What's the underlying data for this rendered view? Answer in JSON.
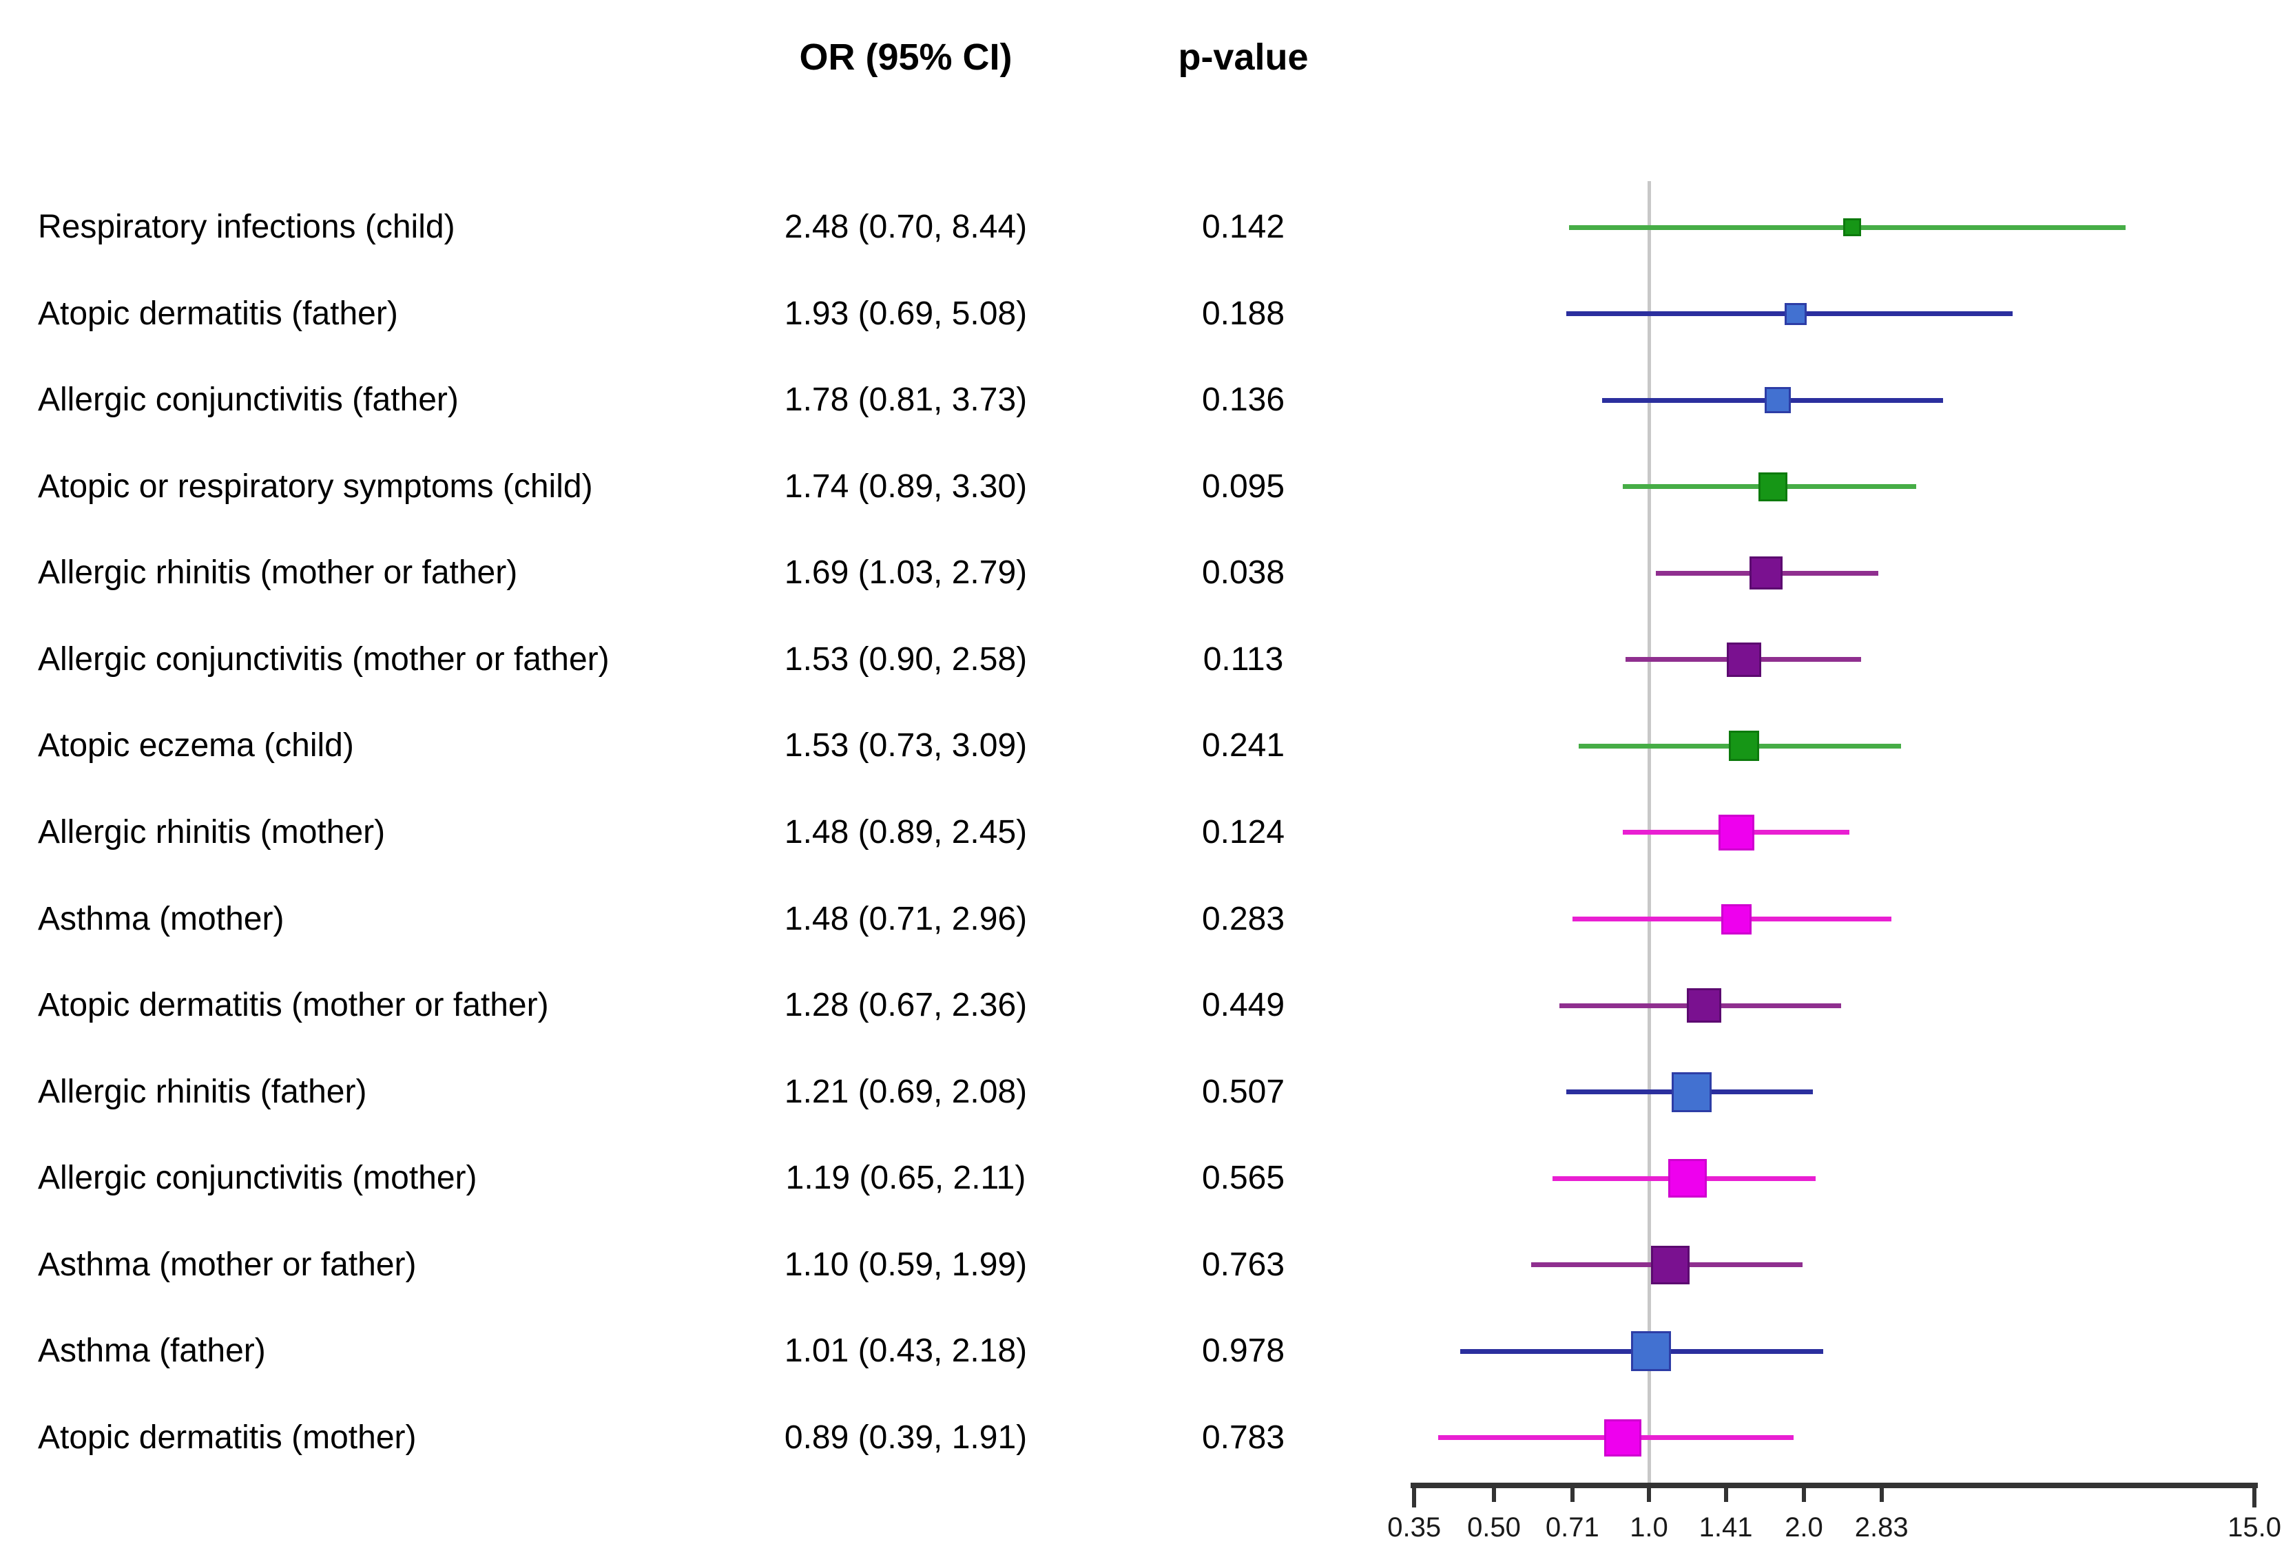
{
  "header": {
    "or_label": "OR (95% CI)",
    "p_label": "p-value"
  },
  "chart_data": {
    "type": "forest",
    "x_scale": "log2",
    "x_domain": [
      0.35,
      15.0
    ],
    "reference_value": 1.0,
    "grid": "off",
    "x_ticks": [
      {
        "v": 0.35,
        "label": "0.35"
      },
      {
        "v": 0.5,
        "label": "0.50"
      },
      {
        "v": 0.71,
        "label": "0.71"
      },
      {
        "v": 1.0,
        "label": "1.0"
      },
      {
        "v": 1.41,
        "label": "1.41"
      },
      {
        "v": 2.0,
        "label": "2.0"
      },
      {
        "v": 2.83,
        "label": "2.83"
      },
      {
        "v": 15.0,
        "label": "15.0"
      }
    ],
    "groups": {
      "child": {
        "square": "#169616",
        "line": "#46ad46",
        "edge": "#0d7a0d"
      },
      "father": {
        "square": "#4271d1",
        "line": "#2b2f9e",
        "edge": "#2d3da6"
      },
      "mother_or_father": {
        "square": "#7a1190",
        "line": "#8f2f8f",
        "edge": "#5c0a70"
      },
      "mother": {
        "square": "#ee00ee",
        "line": "#e91fd2",
        "edge": "#cf00cf"
      }
    },
    "rows": [
      {
        "label": "Respiratory infections (child)",
        "or_ci": "2.48 (0.70, 8.44)",
        "p": "0.142",
        "or": 2.48,
        "lo": 0.7,
        "hi": 8.44,
        "group": "child",
        "size": 26
      },
      {
        "label": "Atopic dermatitis (father)",
        "or_ci": "1.93 (0.69, 5.08)",
        "p": "0.188",
        "or": 1.93,
        "lo": 0.69,
        "hi": 5.08,
        "group": "father",
        "size": 32
      },
      {
        "label": "Allergic conjunctivitis (father)",
        "or_ci": "1.78 (0.81, 3.73)",
        "p": "0.136",
        "or": 1.78,
        "lo": 0.81,
        "hi": 3.73,
        "group": "father",
        "size": 38
      },
      {
        "label": "Atopic or respiratory symptoms (child)",
        "or_ci": "1.74 (0.89, 3.30)",
        "p": "0.095",
        "or": 1.74,
        "lo": 0.89,
        "hi": 3.3,
        "group": "child",
        "size": 42
      },
      {
        "label": "Allergic rhinitis (mother or father)",
        "or_ci": "1.69 (1.03, 2.79)",
        "p": "0.038",
        "or": 1.69,
        "lo": 1.03,
        "hi": 2.79,
        "group": "mother_or_father",
        "size": 48
      },
      {
        "label": "Allergic conjunctivitis (mother or father)",
        "or_ci": "1.53 (0.90, 2.58)",
        "p": "0.113",
        "or": 1.53,
        "lo": 0.9,
        "hi": 2.58,
        "group": "mother_or_father",
        "size": 50
      },
      {
        "label": "Atopic eczema (child)",
        "or_ci": "1.53 (0.73, 3.09)",
        "p": "0.241",
        "or": 1.53,
        "lo": 0.73,
        "hi": 3.09,
        "group": "child",
        "size": 44
      },
      {
        "label": "Allergic rhinitis (mother)",
        "or_ci": "1.48 (0.89, 2.45)",
        "p": "0.124",
        "or": 1.48,
        "lo": 0.89,
        "hi": 2.45,
        "group": "mother",
        "size": 52
      },
      {
        "label": "Asthma (mother)",
        "or_ci": "1.48 (0.71, 2.96)",
        "p": "0.283",
        "or": 1.48,
        "lo": 0.71,
        "hi": 2.96,
        "group": "mother",
        "size": 44
      },
      {
        "label": "Atopic dermatitis (mother or father)",
        "or_ci": "1.28 (0.67, 2.36)",
        "p": "0.449",
        "or": 1.28,
        "lo": 0.67,
        "hi": 2.36,
        "group": "mother_or_father",
        "size": 50
      },
      {
        "label": "Allergic rhinitis (father)",
        "or_ci": "1.21 (0.69, 2.08)",
        "p": "0.507",
        "or": 1.21,
        "lo": 0.69,
        "hi": 2.08,
        "group": "father",
        "size": 58
      },
      {
        "label": "Allergic conjunctivitis (mother)",
        "or_ci": "1.19 (0.65, 2.11)",
        "p": "0.565",
        "or": 1.19,
        "lo": 0.65,
        "hi": 2.11,
        "group": "mother",
        "size": 56
      },
      {
        "label": "Asthma (mother or father)",
        "or_ci": "1.10 (0.59, 1.99)",
        "p": "0.763",
        "or": 1.1,
        "lo": 0.59,
        "hi": 1.99,
        "group": "mother_or_father",
        "size": 56
      },
      {
        "label": "Asthma (father)",
        "or_ci": "1.01 (0.43, 2.18)",
        "p": "0.978",
        "or": 1.01,
        "lo": 0.43,
        "hi": 2.18,
        "group": "father",
        "size": 58
      },
      {
        "label": "Atopic dermatitis (mother)",
        "or_ci": "0.89 (0.39, 1.91)",
        "p": "0.783",
        "or": 0.89,
        "lo": 0.39,
        "hi": 1.91,
        "group": "mother",
        "size": 54
      }
    ]
  }
}
